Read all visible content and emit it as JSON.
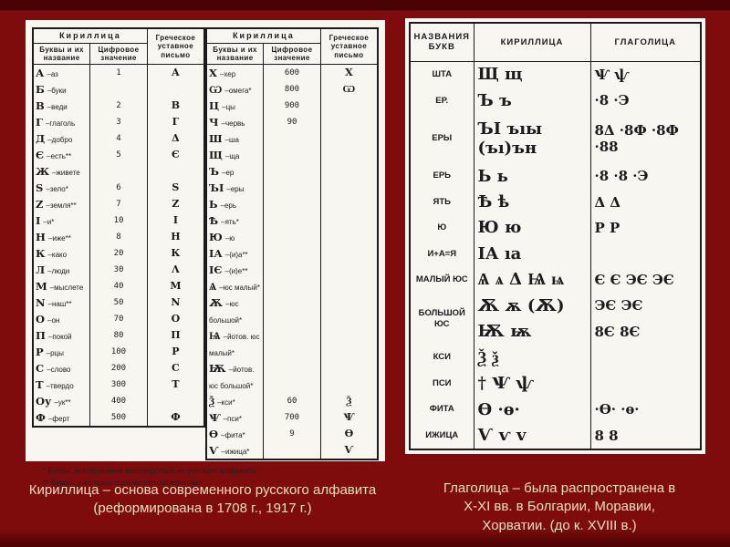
{
  "colors": {
    "background_main": "#7e0c0c",
    "background_band": "#4a0303",
    "panel_background": "#f8f6f1",
    "table_ink": "#1b1b1b",
    "caption_text": "#f2dfc4"
  },
  "left_panel": {
    "header": {
      "group_title": "Кириллица",
      "letters_col": "Буквы и их название",
      "value_col": "Цифровое значение",
      "greek_col": "Греческое уставное письмо"
    },
    "table1_rows": [
      {
        "letter": "А",
        "name": "–аз",
        "num": "1",
        "greek": "А"
      },
      {
        "letter": "Б",
        "name": "–буки",
        "num": "",
        "greek": ""
      },
      {
        "letter": "В",
        "name": "–веди",
        "num": "2",
        "greek": "В"
      },
      {
        "letter": "Г",
        "name": "–глаголь",
        "num": "3",
        "greek": "Г"
      },
      {
        "letter": "Д",
        "name": "–добро",
        "num": "4",
        "greek": "Δ"
      },
      {
        "letter": "Є",
        "name": "–есть**",
        "num": "5",
        "greek": "Є"
      },
      {
        "letter": "Ж",
        "name": "–живете",
        "num": "",
        "greek": ""
      },
      {
        "letter": "S",
        "name": "–зело*",
        "num": "6",
        "greek": "S"
      },
      {
        "letter": "Z",
        "name": "–земля**",
        "num": "7",
        "greek": "Z"
      },
      {
        "letter": "І",
        "name": "–и*",
        "num": "10",
        "greek": "І"
      },
      {
        "letter": "Н",
        "name": "–иже**",
        "num": "8",
        "greek": "Н"
      },
      {
        "letter": "К",
        "name": "–како",
        "num": "20",
        "greek": "К"
      },
      {
        "letter": "Л",
        "name": "–люди",
        "num": "30",
        "greek": "Λ"
      },
      {
        "letter": "М",
        "name": "–мыслете",
        "num": "40",
        "greek": "М"
      },
      {
        "letter": "N",
        "name": "–наш**",
        "num": "50",
        "greek": "N"
      },
      {
        "letter": "О",
        "name": "–он",
        "num": "70",
        "greek": "О"
      },
      {
        "letter": "П",
        "name": "–покой",
        "num": "80",
        "greek": "П"
      },
      {
        "letter": "Р",
        "name": "–рцы",
        "num": "100",
        "greek": "Р"
      },
      {
        "letter": "С",
        "name": "–слово",
        "num": "200",
        "greek": "С"
      },
      {
        "letter": "Т",
        "name": "–твердо",
        "num": "300",
        "greek": "Т"
      },
      {
        "letter": "Оу",
        "name": "–ук**",
        "num": "400",
        "greek": ""
      },
      {
        "letter": "Ф",
        "name": "–ферт",
        "num": "500",
        "greek": "Ф"
      }
    ],
    "table2_rows": [
      {
        "letter": "Х",
        "name": "–хер",
        "num": "600",
        "greek": "Х"
      },
      {
        "letter": "Ѡ",
        "name": "–омега*",
        "num": "800",
        "greek": "Ѡ"
      },
      {
        "letter": "Ц",
        "name": "–цы",
        "num": "900",
        "greek": ""
      },
      {
        "letter": "Ч",
        "name": "–червь",
        "num": "90",
        "greek": ""
      },
      {
        "letter": "Ш",
        "name": "–ша",
        "num": "",
        "greek": ""
      },
      {
        "letter": "Щ",
        "name": "–ща",
        "num": "",
        "greek": ""
      },
      {
        "letter": "Ъ",
        "name": "–ер",
        "num": "",
        "greek": ""
      },
      {
        "letter": "ЪІ",
        "name": "–еры",
        "num": "",
        "greek": ""
      },
      {
        "letter": "Ь",
        "name": "–ерь",
        "num": "",
        "greek": ""
      },
      {
        "letter": "Ѣ",
        "name": "–ять*",
        "num": "",
        "greek": ""
      },
      {
        "letter": "Ю",
        "name": "–ю",
        "num": "",
        "greek": ""
      },
      {
        "letter": "ІА",
        "name": "–(и)а**",
        "num": "",
        "greek": ""
      },
      {
        "letter": "ІЄ",
        "name": "–(и)е**",
        "num": "",
        "greek": ""
      },
      {
        "letter": "Ѧ",
        "name": "–юс малый*",
        "num": "",
        "greek": ""
      },
      {
        "letter": "Ѫ",
        "name": "–юс большой*",
        "num": "",
        "greek": ""
      },
      {
        "letter": "Ѩ",
        "name": "–йотов. юс малый*",
        "num": "",
        "greek": ""
      },
      {
        "letter": "Ѭ",
        "name": "–йотов. юс большой*",
        "num": "",
        "greek": ""
      },
      {
        "letter": "Ѯ",
        "name": "–кси*",
        "num": "60",
        "greek": "Ѯ"
      },
      {
        "letter": "Ѱ",
        "name": "–пси*",
        "num": "700",
        "greek": "Ѱ"
      },
      {
        "letter": "Ѳ",
        "name": "–фита*",
        "num": "9",
        "greek": "Ѳ"
      },
      {
        "letter": "Ѵ",
        "name": "–ижица*",
        "num": "",
        "greek": "Ѵ"
      }
    ],
    "footnotes": [
      "* Буквы, исключённые впоследствии из русского алфавита",
      "** Буквы, у которых изменилось начертание"
    ]
  },
  "right_panel": {
    "headers": [
      "НАЗВАНИЯ БУКВ",
      "КИРИЛЛИЦА",
      "ГЛАГОЛИЦА"
    ],
    "rows": [
      {
        "name": "ШТА",
        "cyr": "Щ щ",
        "glag": "Ѱ ѱ"
      },
      {
        "name": "ЕР.",
        "cyr": "Ъ ъ",
        "glag": "·8 ·Э"
      },
      {
        "name": "ЕРЫ",
        "cyr": "ЪІ ъıы (ъı)ън",
        "glag": "8Δ ·8Ф ·8Ф ·88"
      },
      {
        "name": "ЕРЬ",
        "cyr": "Ь ь",
        "glag": "·8 ·8 ·Э"
      },
      {
        "name": "ЯТЬ",
        "cyr": "Ѣ ѣ",
        "glag": "Δ Δ"
      },
      {
        "name": "Ю",
        "cyr": "Ю ю",
        "glag": "Р Р"
      },
      {
        "name": "И+А=Я",
        "cyr": "ІА ıа",
        "glag": ""
      },
      {
        "name": "МАЛЫЙ ЮС",
        "cyr": "Ѧ ѧ Δ Ѩ ѩ",
        "glag": "Є Є ЭЄ ЭЄ"
      },
      {
        "name": "БОЛЬШОЙ ЮС",
        "name_rowspan": 2,
        "cyr": "Ѫ ѫ (Ѫ)",
        "glag": "ЭЄ ЭЄ"
      },
      {
        "name": "",
        "skip_name": true,
        "cyr": "Ѭ ѭ",
        "glag": "8Є 8Є"
      },
      {
        "name": "КСИ",
        "cyr": "Ѯ ѯ",
        "glag": ""
      },
      {
        "name": "ПСИ",
        "cyr": "† Ѱ ѱ",
        "glag": ""
      },
      {
        "name": "ФИТА",
        "cyr": "Ѳ ·ѳ·",
        "glag": "·Ѳ· ·ѳ·"
      },
      {
        "name": "ИЖИЦА",
        "cyr": "Ѵ ѵ v",
        "glag": "8 8"
      }
    ]
  },
  "captions": {
    "left_lines": [
      "Кириллица – основа современного русского алфавита",
      "(реформирована в 1708 г., 1917 г.)"
    ],
    "right_lines": [
      "Глаголица – была распространена в",
      "X-XI вв. в Болгарии, Моравии,",
      "Хорватии. (до к. XVIII в.)"
    ]
  }
}
